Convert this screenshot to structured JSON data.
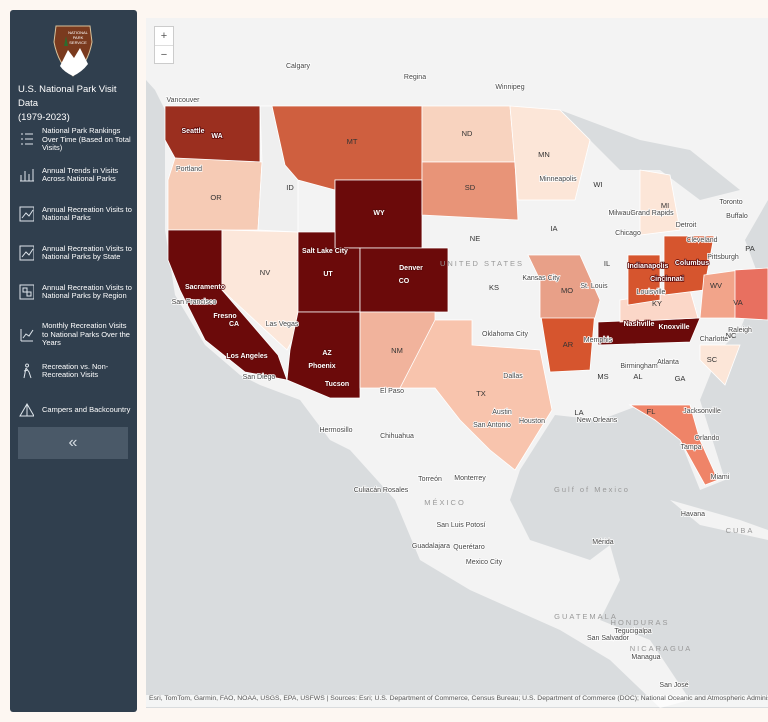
{
  "sidebar": {
    "logo_text": [
      "NATIONAL",
      "PARK",
      "SERVICE"
    ],
    "title": [
      "U.S. National Park Visit Data",
      "(1979-2023)"
    ],
    "nav": [
      "National Park Rankings Over Time (Based on Total Visits)",
      "Annual Trends in Visits Across National Parks",
      "Annual Recreation Visits to National Parks",
      "Annual Recreation Visits to National Parks by State",
      "Annual Recreation Visits to National Parks by Region",
      "Monthly Recreation Visits to National Parks Over the Years",
      "Recreation vs. Non-Recreation Visits",
      "Campers and Backcountry"
    ],
    "collapse": "«"
  },
  "map": {
    "zoom_in": "+",
    "zoom_out": "−",
    "labels": [
      "Calgary",
      "Regina",
      "Winnipeg",
      "Vancouver",
      "Seattle",
      "WA",
      "MT",
      "ND",
      "MN",
      "Portland",
      "ID",
      "SD",
      "WI",
      "MI",
      "Minneapolis",
      "OR",
      "WY",
      "Toronto",
      "Milwaukee",
      "Grand Rapids",
      "Buffalo",
      "IA",
      "Chicago",
      "Detroit",
      "NE",
      "Salt Lake City",
      "UNITED STATES",
      "Cleveland",
      "PA",
      "NV",
      "UT",
      "Denver",
      "CO",
      "IL",
      "Indianapolis",
      "Columbus",
      "Pittsburgh",
      "Kansas City",
      "MO",
      "KS",
      "Cincinnati",
      "WV",
      "St. Louis",
      "Sacramento",
      "San Francisco",
      "KY",
      "VA",
      "Las Vegas",
      "Fresno",
      "CA",
      "Louisville",
      "Nashville",
      "Knoxville",
      "Oklahoma City",
      "Raleigh",
      "NC",
      "Charlotte",
      "NM",
      "AZ",
      "Los Angeles",
      "Phoenix",
      "Memphis",
      "AR",
      "SC",
      "Atlanta",
      "Birmingham",
      "San Diego",
      "Tucson",
      "MS",
      "AL",
      "GA",
      "El Paso",
      "TX",
      "Dallas",
      "Jacksonville",
      "Austin",
      "LA",
      "FL",
      "Houston",
      "New Orleans",
      "San Antonio",
      "Orlando",
      "Hermosillo",
      "Chihuahua",
      "Tampa",
      "Miami",
      "Gulf of Mexico",
      "Torreón",
      "Monterrey",
      "Culiacán Rosales",
      "MÉXICO",
      "Havana",
      "CUBA",
      "San Luis Potosí",
      "Mérida",
      "Guadalajara",
      "Querétaro",
      "Mexico City",
      "GUATEMALA",
      "HONDURAS",
      "San Salvador",
      "Tegucigalpa",
      "NICARAGUA",
      "Managua",
      "San José"
    ],
    "attribution": "Esri, TomTom, Garmin, FAO, NOAA, USGS, EPA, USFWS | Sources: Esri; U.S. Department of Commerce, Census Bureau; U.S. Department of Commerce (DOC); National Oceanic and Atmospheric Administration"
  }
}
